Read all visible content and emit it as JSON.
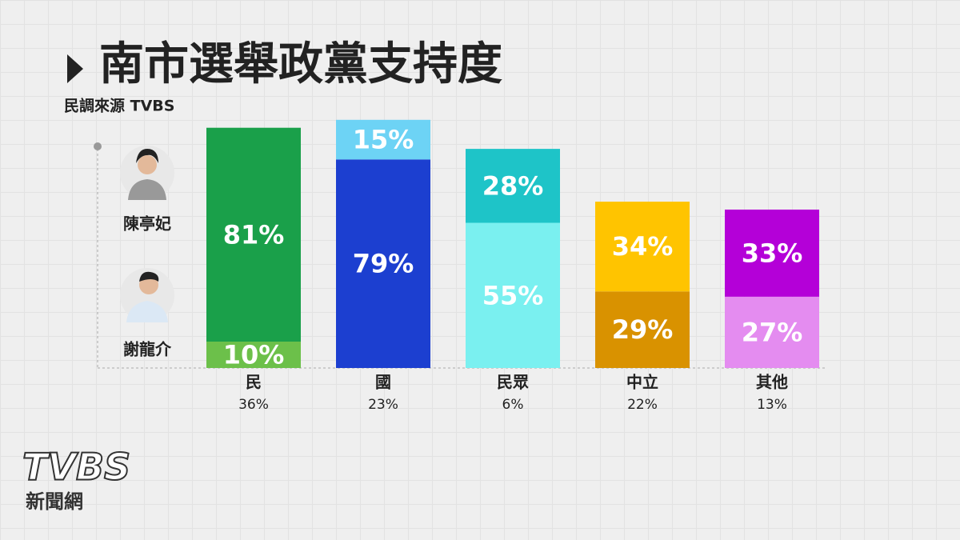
{
  "chart_data": {
    "type": "stacked_bar",
    "title": "南市選舉政黨支持度",
    "subtitle": "民調來源 TVBS",
    "categories": [
      "民",
      "國",
      "民眾",
      "中立",
      "其他"
    ],
    "category_shares": {
      "values": [
        36,
        23,
        6,
        22,
        13
      ],
      "value_labels": [
        "36%",
        "23%",
        "6%",
        "22%",
        "13%"
      ]
    },
    "series": [
      {
        "name": "謝龍介",
        "colors": [
          "#6cc04a",
          "#1c3fd0",
          "#7af0f0",
          "#d99200",
          "#e48cf0"
        ],
        "values": [
          10,
          79,
          55,
          29,
          27
        ],
        "value_labels": [
          "10%",
          "79%",
          "55%",
          "29%",
          "27%"
        ]
      },
      {
        "name": "陳亭妃",
        "colors": [
          "#1aa04a",
          "#6dd3f5",
          "#1ec4c8",
          "#ffc400",
          "#b400d8"
        ],
        "values": [
          81,
          15,
          28,
          34,
          33
        ],
        "value_labels": [
          "81%",
          "15%",
          "28%",
          "34%",
          "33%"
        ]
      }
    ],
    "ylim": [
      0,
      100
    ]
  },
  "logo": {
    "brand": "TVBS",
    "caption": "新聞網"
  }
}
